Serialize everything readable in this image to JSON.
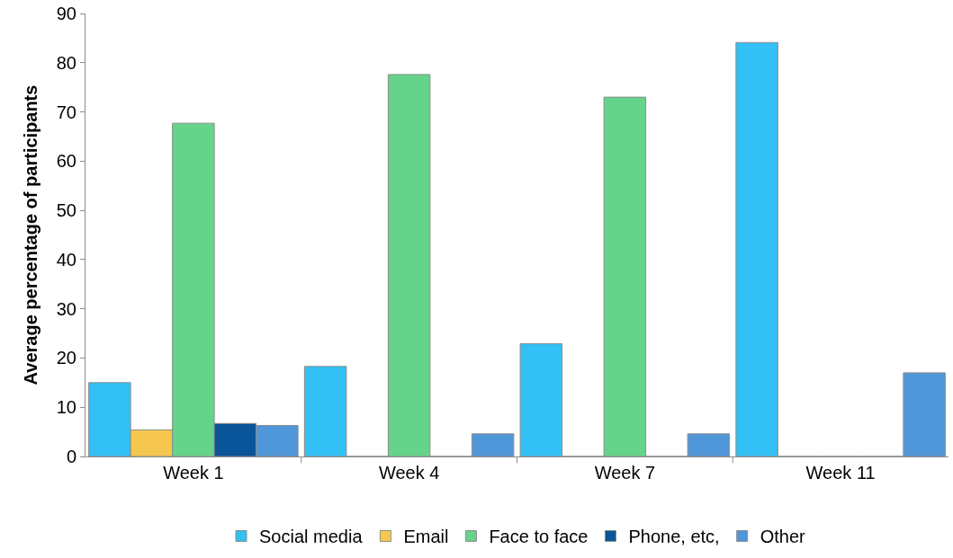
{
  "chart_data": {
    "type": "bar",
    "ylabel": "Average percentage of participants",
    "categories": [
      "Week 1",
      "Week 4",
      "Week 7",
      "Week 11"
    ],
    "series": [
      {
        "name": "Social media",
        "color": "#33c0f5",
        "values": [
          15.0,
          18.3,
          22.9,
          84.1
        ]
      },
      {
        "name": "Email",
        "color": "#f5c74e",
        "values": [
          5.4,
          0,
          0,
          0
        ]
      },
      {
        "name": "Face to face",
        "color": "#66d38a",
        "values": [
          67.7,
          77.6,
          73.0,
          0
        ]
      },
      {
        "name": "Phone, etc,",
        "color": "#0a5499",
        "values": [
          6.7,
          0,
          0,
          0
        ]
      },
      {
        "name": "Other",
        "color": "#5097d9",
        "values": [
          6.3,
          4.6,
          4.6,
          17.0
        ]
      }
    ],
    "ylim": [
      0,
      90
    ],
    "yticks": [
      0,
      10,
      20,
      30,
      40,
      50,
      60,
      70,
      80,
      90
    ],
    "legend": "bottom"
  }
}
